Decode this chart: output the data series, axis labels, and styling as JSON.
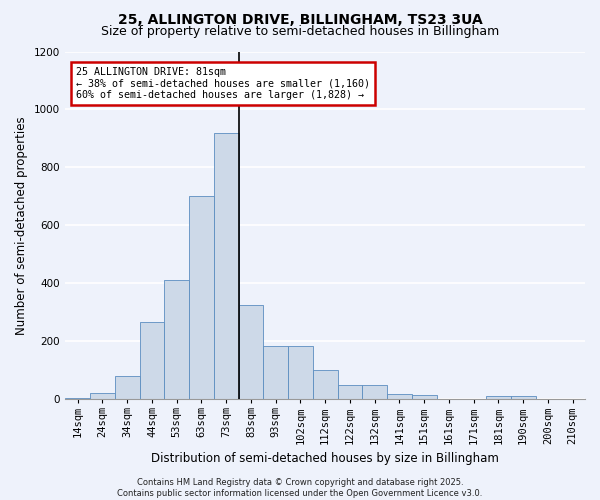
{
  "title_line1": "25, ALLINGTON DRIVE, BILLINGHAM, TS23 3UA",
  "title_line2": "Size of property relative to semi-detached houses in Billingham",
  "xlabel": "Distribution of semi-detached houses by size in Billingham",
  "ylabel": "Number of semi-detached properties",
  "footer_line1": "Contains HM Land Registry data © Crown copyright and database right 2025.",
  "footer_line2": "Contains public sector information licensed under the Open Government Licence v3.0.",
  "categories": [
    "14sqm",
    "24sqm",
    "34sqm",
    "44sqm",
    "53sqm",
    "63sqm",
    "73sqm",
    "83sqm",
    "93sqm",
    "102sqm",
    "112sqm",
    "122sqm",
    "132sqm",
    "141sqm",
    "151sqm",
    "161sqm",
    "171sqm",
    "181sqm",
    "190sqm",
    "200sqm",
    "210sqm"
  ],
  "values": [
    5,
    20,
    80,
    265,
    410,
    700,
    920,
    325,
    185,
    185,
    100,
    50,
    50,
    18,
    13,
    0,
    0,
    10,
    10,
    0,
    0
  ],
  "bar_color": "#cdd9e8",
  "bar_edge_color": "#5b8dc0",
  "vline_x_index": 7,
  "vline_color": "#000000",
  "annotation_text": "25 ALLINGTON DRIVE: 81sqm\n← 38% of semi-detached houses are smaller (1,160)\n60% of semi-detached houses are larger (1,828) →",
  "annotation_box_color": "#ffffff",
  "annotation_box_edge_color": "#cc0000",
  "ylim": [
    0,
    1200
  ],
  "yticks": [
    0,
    200,
    400,
    600,
    800,
    1000,
    1200
  ],
  "background_color": "#eef2fb",
  "grid_color": "#ffffff",
  "title_fontsize": 10,
  "subtitle_fontsize": 9,
  "axis_label_fontsize": 8.5,
  "tick_fontsize": 7.5,
  "footer_fontsize": 6
}
